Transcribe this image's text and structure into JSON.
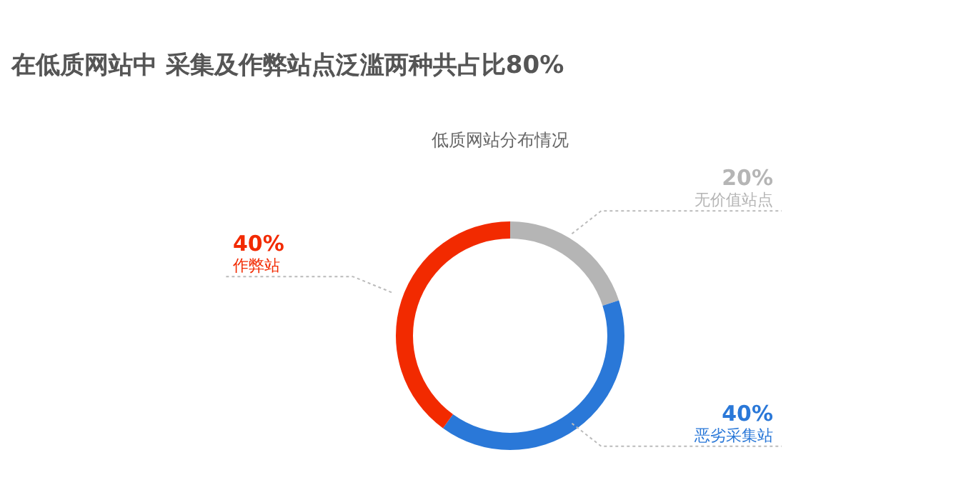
{
  "chart_data": {
    "type": "donut",
    "title": "在低质网站中 采集及作弊站点泛滥两种共占比80%",
    "subtitle": "低质网站分布情况",
    "categories": [
      "无价值站点",
      "恶劣采集站",
      "作弊站"
    ],
    "values": [
      20,
      40,
      40
    ],
    "colors": [
      "#b5b5b5",
      "#2a78d8",
      "#f22a00"
    ],
    "value_labels": [
      "20%",
      "40%",
      "40%"
    ],
    "legend": false
  }
}
